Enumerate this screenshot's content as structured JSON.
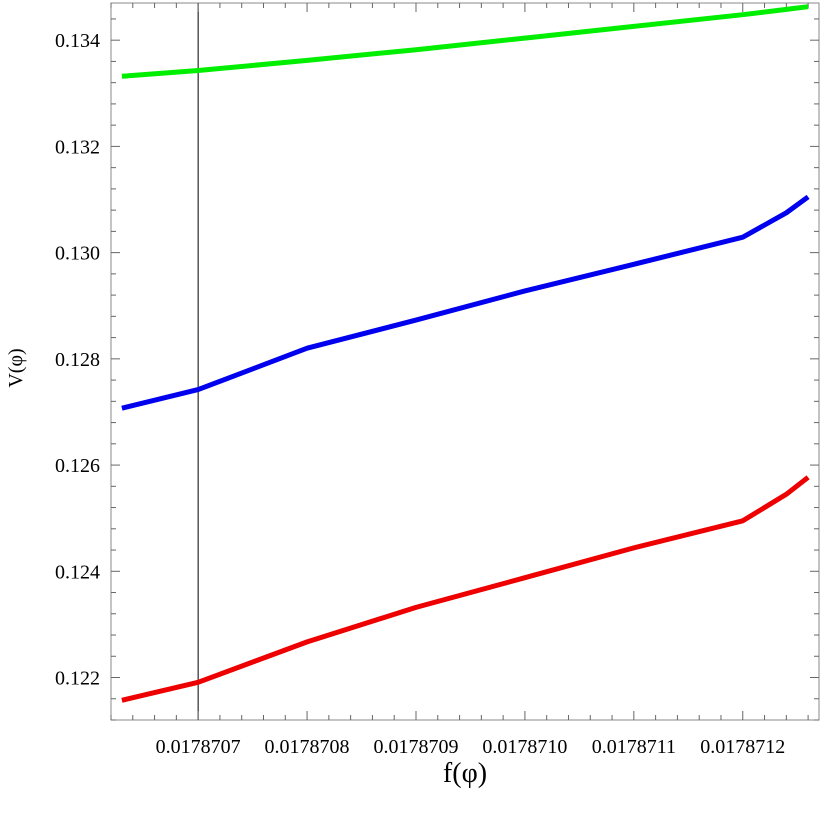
{
  "chart_data": {
    "type": "line",
    "xlabel": "f(φ)",
    "ylabel": "V(φ)",
    "xlim": [
      0.01787062,
      0.01787127
    ],
    "ylim": [
      0.1212,
      0.1347
    ],
    "x_ticks": [
      0.0178707,
      0.0178708,
      0.0178709,
      0.017871,
      0.0178711,
      0.0178712
    ],
    "x_tick_labels": [
      "0.0178707",
      "0.0178708",
      "0.0178709",
      "0.0178710",
      "0.0178711",
      "0.0178712"
    ],
    "y_ticks": [
      0.122,
      0.124,
      0.126,
      0.128,
      0.13,
      0.132,
      0.134
    ],
    "y_tick_labels": [
      "0.122",
      "0.124",
      "0.126",
      "0.128",
      "0.130",
      "0.132",
      "0.134"
    ],
    "reference_line_x": 0.0178707,
    "grid": false,
    "legend": "none",
    "series": [
      {
        "color": "#00ee00",
        "x": [
          0.01787063,
          0.0178707,
          0.0178708,
          0.0178709,
          0.017871,
          0.0178711,
          0.0178712,
          0.01787124,
          0.01787126
        ],
        "y": [
          0.13332,
          0.13343,
          0.13362,
          0.13382,
          0.13404,
          0.13426,
          0.13448,
          0.13458,
          0.13463
        ]
      },
      {
        "color": "#0000ee",
        "x": [
          0.01787063,
          0.0178707,
          0.0178708,
          0.0178709,
          0.017871,
          0.0178711,
          0.0178712,
          0.01787124,
          0.01787126
        ],
        "y": [
          0.12707,
          0.12742,
          0.1282,
          0.12873,
          0.12928,
          0.12978,
          0.13029,
          0.13075,
          0.13105
        ]
      },
      {
        "color": "#ee0000",
        "x": [
          0.01787063,
          0.0178707,
          0.0178708,
          0.0178709,
          0.017871,
          0.0178711,
          0.0178712,
          0.01787124,
          0.01787126
        ],
        "y": [
          0.12157,
          0.12191,
          0.12267,
          0.12332,
          0.12388,
          0.12444,
          0.12495,
          0.12545,
          0.12577
        ]
      }
    ]
  }
}
